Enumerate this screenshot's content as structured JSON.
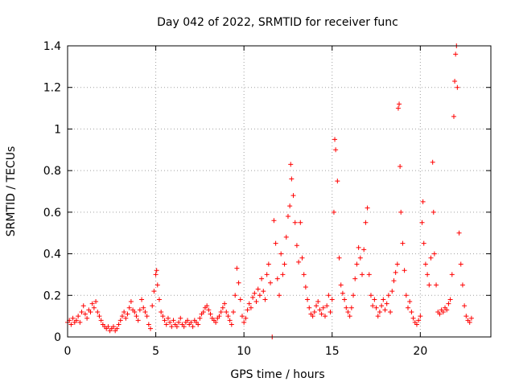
{
  "chart_data": {
    "type": "scatter",
    "title": "Day 042 of 2022, SRMTID for receiver func",
    "xlabel": "GPS time / hours",
    "ylabel": "SRMTID / TECUs",
    "xlim": [
      0,
      24
    ],
    "ylim": [
      0,
      1.4
    ],
    "xticks": [
      0,
      5,
      10,
      15,
      20
    ],
    "xtick_labels": [
      "0",
      "5",
      "10",
      "15",
      "20"
    ],
    "yticks": [
      0,
      0.2,
      0.4,
      0.6,
      0.8,
      1,
      1.2,
      1.4
    ],
    "ytick_labels": [
      "0",
      "0.2",
      "0.4",
      "0.6",
      "0.8",
      "1",
      "1.2",
      "1.4"
    ],
    "grid": true,
    "marker": "+",
    "color": "#ff0000",
    "series": [
      {
        "name": "SRMTID",
        "points": [
          [
            0.0,
            0.07
          ],
          [
            0.1,
            0.08
          ],
          [
            0.2,
            0.06
          ],
          [
            0.3,
            0.09
          ],
          [
            0.4,
            0.07
          ],
          [
            0.5,
            0.08
          ],
          [
            0.6,
            0.1
          ],
          [
            0.7,
            0.07
          ],
          [
            0.8,
            0.12
          ],
          [
            0.9,
            0.15
          ],
          [
            1.0,
            0.11
          ],
          [
            1.1,
            0.09
          ],
          [
            1.2,
            0.13
          ],
          [
            1.3,
            0.12
          ],
          [
            1.4,
            0.16
          ],
          [
            1.5,
            0.14
          ],
          [
            1.6,
            0.17
          ],
          [
            1.7,
            0.12
          ],
          [
            1.8,
            0.1
          ],
          [
            1.9,
            0.08
          ],
          [
            2.0,
            0.06
          ],
          [
            2.1,
            0.05
          ],
          [
            2.2,
            0.04
          ],
          [
            2.3,
            0.05
          ],
          [
            2.4,
            0.03
          ],
          [
            2.5,
            0.04
          ],
          [
            2.6,
            0.05
          ],
          [
            2.7,
            0.03
          ],
          [
            2.8,
            0.04
          ],
          [
            2.9,
            0.06
          ],
          [
            3.0,
            0.08
          ],
          [
            3.1,
            0.1
          ],
          [
            3.2,
            0.12
          ],
          [
            3.3,
            0.09
          ],
          [
            3.4,
            0.11
          ],
          [
            3.5,
            0.14
          ],
          [
            3.6,
            0.17
          ],
          [
            3.7,
            0.13
          ],
          [
            3.8,
            0.12
          ],
          [
            3.9,
            0.1
          ],
          [
            4.0,
            0.08
          ],
          [
            4.1,
            0.13
          ],
          [
            4.2,
            0.18
          ],
          [
            4.3,
            0.14
          ],
          [
            4.4,
            0.12
          ],
          [
            4.5,
            0.1
          ],
          [
            4.6,
            0.06
          ],
          [
            4.7,
            0.04
          ],
          [
            4.8,
            0.15
          ],
          [
            4.9,
            0.22
          ],
          [
            5.0,
            0.3
          ],
          [
            5.05,
            0.32
          ],
          [
            5.1,
            0.25
          ],
          [
            5.2,
            0.18
          ],
          [
            5.3,
            0.12
          ],
          [
            5.4,
            0.1
          ],
          [
            5.5,
            0.08
          ],
          [
            5.6,
            0.06
          ],
          [
            5.7,
            0.09
          ],
          [
            5.8,
            0.07
          ],
          [
            5.9,
            0.05
          ],
          [
            6.0,
            0.08
          ],
          [
            6.1,
            0.06
          ],
          [
            6.2,
            0.05
          ],
          [
            6.3,
            0.07
          ],
          [
            6.4,
            0.09
          ],
          [
            6.5,
            0.06
          ],
          [
            6.6,
            0.05
          ],
          [
            6.7,
            0.07
          ],
          [
            6.8,
            0.08
          ],
          [
            6.9,
            0.06
          ],
          [
            7.0,
            0.07
          ],
          [
            7.1,
            0.05
          ],
          [
            7.2,
            0.08
          ],
          [
            7.3,
            0.07
          ],
          [
            7.4,
            0.06
          ],
          [
            7.5,
            0.09
          ],
          [
            7.6,
            0.11
          ],
          [
            7.7,
            0.12
          ],
          [
            7.8,
            0.14
          ],
          [
            7.9,
            0.15
          ],
          [
            8.0,
            0.13
          ],
          [
            8.1,
            0.11
          ],
          [
            8.2,
            0.09
          ],
          [
            8.3,
            0.08
          ],
          [
            8.4,
            0.07
          ],
          [
            8.5,
            0.09
          ],
          [
            8.6,
            0.1
          ],
          [
            8.7,
            0.12
          ],
          [
            8.8,
            0.14
          ],
          [
            8.9,
            0.16
          ],
          [
            9.0,
            0.12
          ],
          [
            9.1,
            0.1
          ],
          [
            9.2,
            0.08
          ],
          [
            9.3,
            0.06
          ],
          [
            9.4,
            0.12
          ],
          [
            9.5,
            0.2
          ],
          [
            9.6,
            0.33
          ],
          [
            9.7,
            0.26
          ],
          [
            9.8,
            0.18
          ],
          [
            9.9,
            0.1
          ],
          [
            10.0,
            0.07
          ],
          [
            10.1,
            0.09
          ],
          [
            10.2,
            0.13
          ],
          [
            10.3,
            0.16
          ],
          [
            10.4,
            0.14
          ],
          [
            10.5,
            0.19
          ],
          [
            10.6,
            0.21
          ],
          [
            10.7,
            0.17
          ],
          [
            10.8,
            0.23
          ],
          [
            10.9,
            0.2
          ],
          [
            11.0,
            0.28
          ],
          [
            11.1,
            0.22
          ],
          [
            11.2,
            0.18
          ],
          [
            11.3,
            0.3
          ],
          [
            11.4,
            0.35
          ],
          [
            11.5,
            0.26
          ],
          [
            11.6,
            0.0
          ],
          [
            11.7,
            0.56
          ],
          [
            11.8,
            0.45
          ],
          [
            11.9,
            0.28
          ],
          [
            12.0,
            0.2
          ],
          [
            12.1,
            0.4
          ],
          [
            12.2,
            0.3
          ],
          [
            12.3,
            0.35
          ],
          [
            12.4,
            0.48
          ],
          [
            12.5,
            0.58
          ],
          [
            12.6,
            0.63
          ],
          [
            12.65,
            0.83
          ],
          [
            12.7,
            0.76
          ],
          [
            12.8,
            0.68
          ],
          [
            12.9,
            0.55
          ],
          [
            13.0,
            0.44
          ],
          [
            13.1,
            0.36
          ],
          [
            13.2,
            0.55
          ],
          [
            13.3,
            0.38
          ],
          [
            13.4,
            0.3
          ],
          [
            13.5,
            0.24
          ],
          [
            13.6,
            0.18
          ],
          [
            13.7,
            0.14
          ],
          [
            13.8,
            0.11
          ],
          [
            13.9,
            0.1
          ],
          [
            14.0,
            0.12
          ],
          [
            14.1,
            0.15
          ],
          [
            14.2,
            0.17
          ],
          [
            14.3,
            0.13
          ],
          [
            14.4,
            0.11
          ],
          [
            14.5,
            0.14
          ],
          [
            14.6,
            0.1
          ],
          [
            14.7,
            0.15
          ],
          [
            14.8,
            0.2
          ],
          [
            14.9,
            0.12
          ],
          [
            15.0,
            0.18
          ],
          [
            15.1,
            0.6
          ],
          [
            15.15,
            0.95
          ],
          [
            15.2,
            0.9
          ],
          [
            15.3,
            0.75
          ],
          [
            15.4,
            0.38
          ],
          [
            15.5,
            0.25
          ],
          [
            15.6,
            0.21
          ],
          [
            15.7,
            0.18
          ],
          [
            15.8,
            0.14
          ],
          [
            15.9,
            0.12
          ],
          [
            16.0,
            0.1
          ],
          [
            16.1,
            0.14
          ],
          [
            16.2,
            0.2
          ],
          [
            16.3,
            0.28
          ],
          [
            16.4,
            0.35
          ],
          [
            16.5,
            0.43
          ],
          [
            16.6,
            0.38
          ],
          [
            16.7,
            0.3
          ],
          [
            16.8,
            0.42
          ],
          [
            16.9,
            0.55
          ],
          [
            17.0,
            0.62
          ],
          [
            17.1,
            0.3
          ],
          [
            17.2,
            0.2
          ],
          [
            17.3,
            0.15
          ],
          [
            17.4,
            0.18
          ],
          [
            17.5,
            0.14
          ],
          [
            17.6,
            0.1
          ],
          [
            17.7,
            0.12
          ],
          [
            17.8,
            0.15
          ],
          [
            17.9,
            0.18
          ],
          [
            18.0,
            0.13
          ],
          [
            18.1,
            0.16
          ],
          [
            18.2,
            0.2
          ],
          [
            18.3,
            0.12
          ],
          [
            18.4,
            0.22
          ],
          [
            18.5,
            0.27
          ],
          [
            18.6,
            0.31
          ],
          [
            18.7,
            0.35
          ],
          [
            18.75,
            1.1
          ],
          [
            18.8,
            1.12
          ],
          [
            18.85,
            0.82
          ],
          [
            18.9,
            0.6
          ],
          [
            19.0,
            0.45
          ],
          [
            19.1,
            0.32
          ],
          [
            19.2,
            0.2
          ],
          [
            19.3,
            0.14
          ],
          [
            19.4,
            0.17
          ],
          [
            19.5,
            0.12
          ],
          [
            19.6,
            0.09
          ],
          [
            19.7,
            0.07
          ],
          [
            19.8,
            0.06
          ],
          [
            19.9,
            0.08
          ],
          [
            20.0,
            0.1
          ],
          [
            20.1,
            0.55
          ],
          [
            20.15,
            0.65
          ],
          [
            20.2,
            0.45
          ],
          [
            20.3,
            0.35
          ],
          [
            20.4,
            0.3
          ],
          [
            20.5,
            0.25
          ],
          [
            20.6,
            0.38
          ],
          [
            20.7,
            0.84
          ],
          [
            20.75,
            0.6
          ],
          [
            20.8,
            0.4
          ],
          [
            20.9,
            0.25
          ],
          [
            21.0,
            0.12
          ],
          [
            21.1,
            0.11
          ],
          [
            21.2,
            0.13
          ],
          [
            21.3,
            0.12
          ],
          [
            21.4,
            0.14
          ],
          [
            21.5,
            0.13
          ],
          [
            21.6,
            0.16
          ],
          [
            21.7,
            0.18
          ],
          [
            21.8,
            0.3
          ],
          [
            21.9,
            1.06
          ],
          [
            21.95,
            1.23
          ],
          [
            22.0,
            1.36
          ],
          [
            22.05,
            1.4
          ],
          [
            22.1,
            1.2
          ],
          [
            22.2,
            0.5
          ],
          [
            22.3,
            0.35
          ],
          [
            22.4,
            0.25
          ],
          [
            22.5,
            0.15
          ],
          [
            22.6,
            0.1
          ],
          [
            22.7,
            0.08
          ],
          [
            22.8,
            0.07
          ],
          [
            22.9,
            0.09
          ]
        ]
      }
    ]
  }
}
